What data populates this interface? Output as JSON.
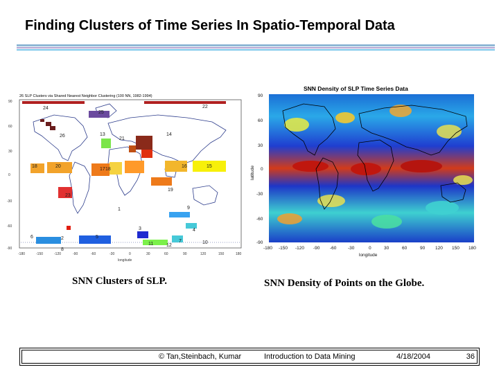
{
  "slide": {
    "title": "Finding Clusters of Time Series In Spatio-Temporal Data"
  },
  "left_figure": {
    "title": "26 SLP Clusters via Shared Nearest Neighbor Clustering (100 NN, 1982-1994)",
    "xlabel": "longitude",
    "x_ticks": [
      "-180",
      "-150",
      "-120",
      "-90",
      "-60",
      "-30",
      "0",
      "30",
      "60",
      "90",
      "120",
      "150",
      "180"
    ],
    "y_ticks": [
      "90",
      "60",
      "30",
      "0",
      "-30",
      "-60",
      "-90"
    ],
    "cluster_labels": [
      "1",
      "2",
      "3",
      "4",
      "5",
      "6",
      "7",
      "8",
      "9",
      "10",
      "11",
      "12",
      "13",
      "14",
      "15",
      "16",
      "17",
      "18",
      "19",
      "20",
      "21",
      "22",
      "23",
      "24",
      "25",
      "26"
    ],
    "caption": "SNN Clusters of SLP."
  },
  "right_figure": {
    "title": "SNN Density of SLP Time Series Data",
    "xlabel": "longitude",
    "ylabel": "latitude",
    "x_ticks": [
      "-180",
      "-150",
      "-120",
      "-90",
      "-60",
      "-30",
      "0",
      "30",
      "60",
      "90",
      "120",
      "150",
      "180"
    ],
    "y_ticks": [
      "90",
      "60",
      "30",
      "0",
      "-30",
      "-60",
      "-90"
    ],
    "caption": "SNN Density of Points on the Globe."
  },
  "footer": {
    "copyright": "© Tan,Steinbach, Kumar",
    "course": "Introduction to Data Mining",
    "date": "4/18/2004",
    "page": "36"
  },
  "colors": {
    "rule_blue": "#8fb7d6",
    "rule_purple": "#b2a3d1",
    "rule_cyan": "#7cc7ea",
    "density_low": "#1a3fc8",
    "density_high": "#c41a0f"
  }
}
